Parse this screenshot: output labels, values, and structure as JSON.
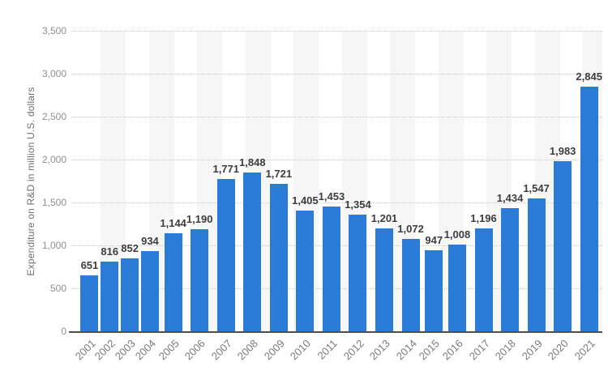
{
  "chart_data": {
    "type": "bar",
    "title": "",
    "xlabel": "",
    "ylabel": "Expenditure on R&D in million U.S. dollars",
    "categories": [
      "2001",
      "2002",
      "2003",
      "2004",
      "2005",
      "2006",
      "2007",
      "2008",
      "2009",
      "2010",
      "2011",
      "2012",
      "2013",
      "2014",
      "2015",
      "2016",
      "2017",
      "2018",
      "2019",
      "2020",
      "2021"
    ],
    "values": [
      651,
      816,
      852,
      934,
      1144,
      1190,
      1771,
      1848,
      1721,
      1405,
      1453,
      1354,
      1201,
      1072,
      947,
      1008,
      1196,
      1434,
      1547,
      1983,
      2845
    ],
    "value_labels": [
      "651",
      "816",
      "852",
      "934",
      "1,144",
      "1,190",
      "1,771",
      "1,848",
      "1,721",
      "1,405",
      "1,453",
      "1,354",
      "1,201",
      "1,072",
      "947",
      "1,008",
      "1,196",
      "1,434",
      "1,547",
      "1,983",
      "2,845"
    ],
    "ylim": [
      0,
      3500
    ],
    "yticks": [
      "0",
      "500",
      "1,000",
      "1,500",
      "2,000",
      "2,500",
      "3,000",
      "3,500"
    ],
    "grid": "horizontal-dotted",
    "legend": "none"
  },
  "colors": {
    "bar": "#2b7cd9",
    "stripe": "#f6f6f6",
    "gridline": "#c9c9c9",
    "axis_line": "#4f4f4f",
    "y_tick_text": "#8f8f8f",
    "x_tick_text": "#7a7a7a",
    "value_label_text": "#3d3d3d",
    "axis_title_text": "#707070",
    "background": "#ffffff"
  }
}
